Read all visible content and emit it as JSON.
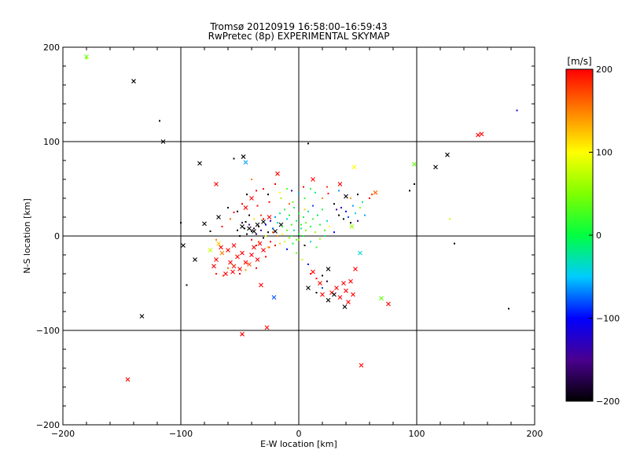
{
  "chart_data": {
    "type": "scatter",
    "title": "Tromsø 20120919 16:58:00–16:59:43",
    "subtitle": "RwPretec (8p) EXPERIMENTAL SKYMAP",
    "xlabel": "E-W location [km]",
    "ylabel": "N-S location [km]",
    "xlim": [
      -200,
      200
    ],
    "ylim": [
      -200,
      200
    ],
    "xticks": [
      -200,
      -100,
      0,
      100,
      200
    ],
    "yticks": [
      -200,
      -100,
      0,
      100,
      200
    ],
    "grid": true,
    "colorbar": {
      "label": "[m/s]",
      "range": [
        -200,
        200
      ],
      "ticks": [
        200,
        100,
        0,
        -100,
        -200
      ]
    },
    "series": [
      {
        "marker": "x",
        "points": [
          [
            -180,
            190,
            40
          ],
          [
            -140,
            164,
            -200
          ],
          [
            -115,
            100,
            -200
          ],
          [
            -84,
            77,
            -200
          ],
          [
            -70,
            55,
            200
          ],
          [
            -47,
            84,
            -200
          ],
          [
            -45,
            78,
            -60
          ],
          [
            -18,
            66,
            200
          ],
          [
            12,
            60,
            200
          ],
          [
            35,
            55,
            200
          ],
          [
            47,
            73,
            100
          ],
          [
            40,
            42,
            -200
          ],
          [
            65,
            46,
            160
          ],
          [
            98,
            76,
            40
          ],
          [
            116,
            73,
            -200
          ],
          [
            126,
            86,
            -200
          ],
          [
            152,
            107,
            200
          ],
          [
            155,
            108,
            200
          ],
          [
            -98,
            -10,
            -200
          ],
          [
            -88,
            -25,
            -200
          ],
          [
            -70,
            -25,
            200
          ],
          [
            -65,
            -18,
            150
          ],
          [
            -60,
            -15,
            200
          ],
          [
            -58,
            -28,
            200
          ],
          [
            -55,
            -32,
            190
          ],
          [
            -52,
            -22,
            200
          ],
          [
            -50,
            -35,
            200
          ],
          [
            -48,
            -18,
            200
          ],
          [
            -45,
            -28,
            200
          ],
          [
            -42,
            -30,
            170
          ],
          [
            -40,
            -20,
            200
          ],
          [
            -38,
            -12,
            200
          ],
          [
            -35,
            -25,
            200
          ],
          [
            -33,
            -8,
            200
          ],
          [
            -30,
            -15,
            200
          ],
          [
            -62,
            -40,
            200
          ],
          [
            -56,
            -38,
            200
          ],
          [
            -66,
            -12,
            200
          ],
          [
            -72,
            -32,
            200
          ],
          [
            -75,
            -15,
            80
          ],
          [
            -68,
            -8,
            120
          ],
          [
            -55,
            -10,
            200
          ],
          [
            -80,
            13,
            -200
          ],
          [
            -68,
            20,
            -200
          ],
          [
            -48,
            10,
            -200
          ],
          [
            -42,
            8,
            -200
          ],
          [
            -38,
            5,
            -200
          ],
          [
            -35,
            12,
            -200
          ],
          [
            -30,
            15,
            -200
          ],
          [
            -25,
            20,
            200
          ],
          [
            -45,
            30,
            200
          ],
          [
            -40,
            40,
            200
          ],
          [
            -20,
            5,
            -200
          ],
          [
            -15,
            12,
            -200
          ],
          [
            -32,
            -52,
            200
          ],
          [
            -21,
            -65,
            -80
          ],
          [
            -48,
            -104,
            200
          ],
          [
            -27,
            -97,
            200
          ],
          [
            -133,
            -85,
            -200
          ],
          [
            -145,
            -152,
            200
          ],
          [
            8,
            -55,
            -200
          ],
          [
            12,
            -38,
            200
          ],
          [
            18,
            -50,
            200
          ],
          [
            20,
            -62,
            200
          ],
          [
            25,
            -68,
            -200
          ],
          [
            28,
            -60,
            200
          ],
          [
            32,
            -55,
            200
          ],
          [
            35,
            -65,
            200
          ],
          [
            38,
            -50,
            200
          ],
          [
            40,
            -58,
            200
          ],
          [
            42,
            -70,
            200
          ],
          [
            44,
            -48,
            200
          ],
          [
            46,
            -62,
            200
          ],
          [
            39,
            -75,
            -200
          ],
          [
            30,
            -62,
            -200
          ],
          [
            48,
            -35,
            200
          ],
          [
            53,
            -137,
            200
          ],
          [
            70,
            -66,
            40
          ],
          [
            76,
            -72,
            200
          ],
          [
            52,
            -18,
            -40
          ],
          [
            25,
            -35,
            -200
          ],
          [
            45,
            10,
            60
          ]
        ]
      },
      {
        "marker": "dot",
        "points": [
          [
            -118,
            122,
            -200
          ],
          [
            -55,
            82,
            -200
          ],
          [
            8,
            98,
            -200
          ],
          [
            -45,
            15,
            -200
          ],
          [
            -42,
            12,
            -150
          ],
          [
            -40,
            5,
            -200
          ],
          [
            -38,
            8,
            -180
          ],
          [
            -36,
            2,
            -160
          ],
          [
            -34,
            10,
            -200
          ],
          [
            -32,
            6,
            -140
          ],
          [
            -30,
            -2,
            -200
          ],
          [
            -28,
            12,
            -100
          ],
          [
            -26,
            4,
            -200
          ],
          [
            -24,
            16,
            -120
          ],
          [
            -22,
            8,
            -80
          ],
          [
            -20,
            20,
            -60
          ],
          [
            -18,
            14,
            -30
          ],
          [
            -16,
            24,
            -20
          ],
          [
            -14,
            10,
            0
          ],
          [
            -12,
            28,
            20
          ],
          [
            -10,
            18,
            -40
          ],
          [
            -8,
            22,
            10
          ],
          [
            -6,
            12,
            30
          ],
          [
            -4,
            30,
            -10
          ],
          [
            -2,
            16,
            0
          ],
          [
            0,
            24,
            20
          ],
          [
            2,
            8,
            -20
          ],
          [
            4,
            20,
            10
          ],
          [
            6,
            14,
            40
          ],
          [
            8,
            26,
            -30
          ],
          [
            10,
            10,
            0
          ],
          [
            12,
            18,
            20
          ],
          [
            14,
            4,
            60
          ],
          [
            16,
            22,
            -10
          ],
          [
            18,
            12,
            10
          ],
          [
            20,
            28,
            0
          ],
          [
            22,
            6,
            30
          ],
          [
            24,
            16,
            -40
          ],
          [
            -6,
            0,
            10
          ],
          [
            -4,
            6,
            -20
          ],
          [
            -2,
            -4,
            30
          ],
          [
            0,
            2,
            0
          ],
          [
            2,
            12,
            20
          ],
          [
            4,
            0,
            0
          ],
          [
            6,
            6,
            50
          ],
          [
            -10,
            6,
            40
          ],
          [
            -8,
            -2,
            60
          ],
          [
            -12,
            -6,
            80
          ],
          [
            -14,
            2,
            100
          ],
          [
            -16,
            -8,
            120
          ],
          [
            -18,
            0,
            150
          ],
          [
            -20,
            -10,
            200
          ],
          [
            -22,
            4,
            170
          ],
          [
            -24,
            -6,
            200
          ],
          [
            -26,
            -12,
            130
          ],
          [
            -28,
            0,
            90
          ],
          [
            -30,
            18,
            200
          ],
          [
            -32,
            22,
            180
          ],
          [
            -34,
            -6,
            160
          ],
          [
            -36,
            -10,
            200
          ],
          [
            -38,
            18,
            110
          ],
          [
            -40,
            -4,
            200
          ],
          [
            -42,
            22,
            -200
          ],
          [
            -44,
            2,
            -200
          ],
          [
            -46,
            8,
            -200
          ],
          [
            -48,
            14,
            -180
          ],
          [
            -50,
            0,
            -200
          ],
          [
            -52,
            6,
            -200
          ],
          [
            30,
            34,
            -200
          ],
          [
            32,
            28,
            -150
          ],
          [
            34,
            22,
            -200
          ],
          [
            36,
            30,
            -120
          ],
          [
            38,
            18,
            -200
          ],
          [
            40,
            26,
            -100
          ],
          [
            42,
            20,
            -80
          ],
          [
            44,
            14,
            -200
          ],
          [
            46,
            32,
            -60
          ],
          [
            48,
            24,
            -40
          ],
          [
            50,
            16,
            -140
          ],
          [
            52,
            30,
            50
          ],
          [
            54,
            36,
            -20
          ],
          [
            56,
            22,
            -60
          ],
          [
            60,
            40,
            200
          ],
          [
            62,
            44,
            180
          ],
          [
            94,
            48,
            -200
          ],
          [
            98,
            55,
            -200
          ],
          [
            -95,
            -52,
            -200
          ],
          [
            -70,
            -40,
            200
          ],
          [
            -64,
            -42,
            180
          ],
          [
            -60,
            -34,
            160
          ],
          [
            -50,
            -40,
            200
          ],
          [
            -45,
            -36,
            140
          ],
          [
            -36,
            -34,
            200
          ],
          [
            -28,
            -22,
            200
          ],
          [
            -25,
            -12,
            160
          ],
          [
            -10,
            -14,
            -100
          ],
          [
            -5,
            -8,
            0
          ],
          [
            0,
            -4,
            60
          ],
          [
            5,
            -10,
            -200
          ],
          [
            10,
            -6,
            -40
          ],
          [
            15,
            -12,
            20
          ],
          [
            18,
            -3,
            60
          ],
          [
            22,
            0,
            -20
          ],
          [
            26,
            10,
            100
          ],
          [
            30,
            4,
            -100
          ],
          [
            5,
            40,
            20
          ],
          [
            -5,
            36,
            40
          ],
          [
            -15,
            40,
            60
          ],
          [
            -25,
            36,
            200
          ],
          [
            -35,
            32,
            200
          ],
          [
            20,
            40,
            150
          ],
          [
            25,
            45,
            200
          ],
          [
            10,
            50,
            10
          ],
          [
            -10,
            50,
            30
          ],
          [
            0,
            45,
            -60
          ],
          [
            -30,
            50,
            200
          ],
          [
            -20,
            55,
            200
          ],
          [
            -40,
            60,
            150
          ],
          [
            -55,
            25,
            200
          ],
          [
            -60,
            30,
            -200
          ],
          [
            10,
            -40,
            200
          ],
          [
            15,
            -45,
            200
          ],
          [
            20,
            -42,
            -200
          ],
          [
            8,
            -30,
            -100
          ],
          [
            3,
            -25,
            80
          ],
          [
            -2,
            -18,
            40
          ],
          [
            128,
            18,
            80
          ],
          [
            132,
            -8,
            -200
          ],
          [
            178,
            -77,
            -200
          ],
          [
            185,
            133,
            -120
          ],
          [
            -180,
            188,
            60
          ],
          [
            15,
            -60,
            -200
          ],
          [
            20,
            -55,
            -80
          ],
          [
            24,
            -48,
            -180
          ],
          [
            5,
            28,
            120
          ],
          [
            -8,
            34,
            160
          ],
          [
            12,
            32,
            -80
          ],
          [
            -70,
            -4,
            150
          ],
          [
            -75,
            5,
            -200
          ],
          [
            -65,
            10,
            200
          ],
          [
            -58,
            18,
            160
          ],
          [
            -52,
            26,
            -200
          ],
          [
            -48,
            34,
            200
          ],
          [
            -44,
            44,
            -200
          ],
          [
            -36,
            48,
            200
          ],
          [
            -26,
            44,
            -200
          ],
          [
            -16,
            46,
            100
          ],
          [
            -6,
            48,
            -140
          ],
          [
            4,
            52,
            200
          ],
          [
            14,
            46,
            -20
          ],
          [
            24,
            52,
            180
          ],
          [
            34,
            48,
            -60
          ],
          [
            44,
            40,
            140
          ],
          [
            50,
            44,
            -200
          ],
          [
            -100,
            14,
            -200
          ]
        ]
      }
    ]
  }
}
